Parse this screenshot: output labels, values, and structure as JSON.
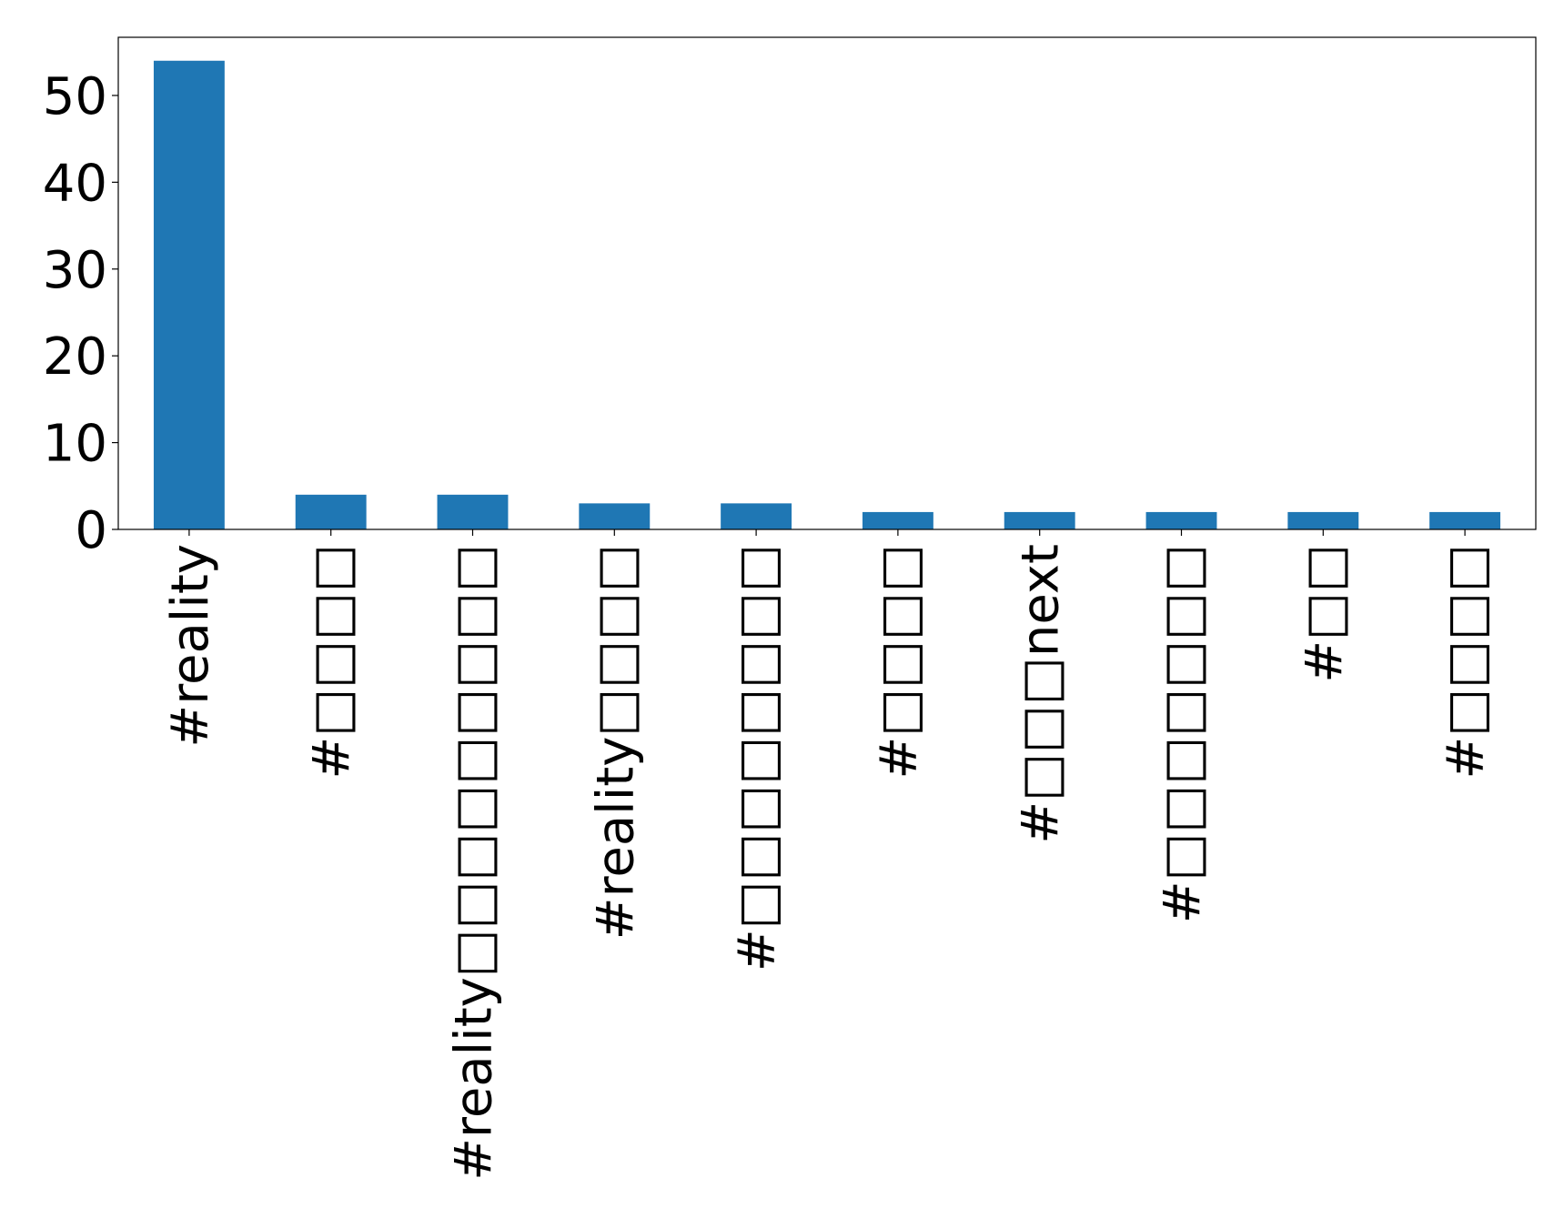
{
  "chart_data": {
    "type": "bar",
    "categories": [
      "#reality",
      "#□□□□",
      "#reality□□□□□□□□□",
      "#reality□□□□",
      "#□□□□□□□□",
      "#□□□□",
      "#□□□next",
      "#□□□□□□□",
      "#□□",
      "#□□□□"
    ],
    "values": [
      54,
      4,
      4,
      3,
      3,
      2,
      2,
      2,
      2,
      2
    ],
    "title": "",
    "xlabel": "",
    "ylabel": "",
    "ylim": [
      0,
      56.7
    ],
    "yticks": [
      0,
      10,
      20,
      30,
      40,
      50
    ],
    "grid": false,
    "legend": "none",
    "colors": {
      "bar": "#1f77b4",
      "axis": "#000000",
      "background": "#ffffff"
    }
  }
}
